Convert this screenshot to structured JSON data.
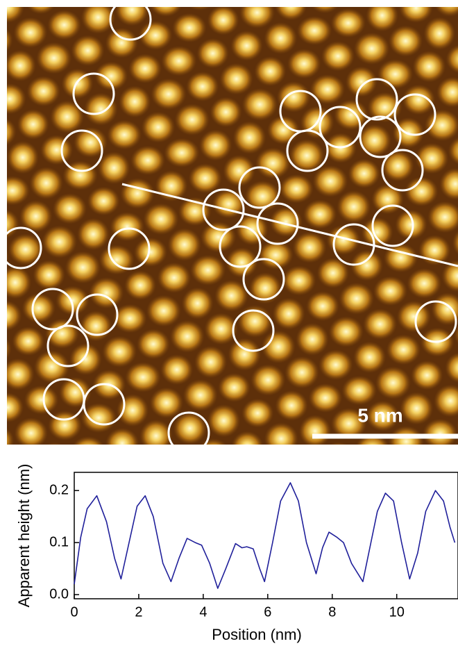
{
  "image": {
    "scale_bar_label": "5 nm"
  },
  "chart_data": {
    "type": "line",
    "xlabel": "Position (nm)",
    "ylabel": "Apparent height (nm)",
    "x": [
      0,
      0.2,
      0.4,
      0.7,
      1.0,
      1.25,
      1.45,
      1.7,
      1.95,
      2.2,
      2.45,
      2.75,
      3.0,
      3.25,
      3.5,
      3.75,
      3.95,
      4.2,
      4.45,
      4.7,
      5.0,
      5.2,
      5.35,
      5.55,
      5.75,
      5.9,
      6.15,
      6.4,
      6.7,
      6.95,
      7.2,
      7.5,
      7.7,
      7.9,
      8.15,
      8.35,
      8.6,
      8.95,
      9.2,
      9.4,
      9.65,
      9.9,
      10.15,
      10.4,
      10.65,
      10.9,
      11.2,
      11.45,
      11.65,
      11.8
    ],
    "series": [
      {
        "color": "#1f1f9a",
        "values": [
          0.02,
          0.11,
          0.165,
          0.19,
          0.14,
          0.07,
          0.03,
          0.1,
          0.17,
          0.19,
          0.15,
          0.06,
          0.025,
          0.07,
          0.108,
          0.1,
          0.095,
          0.06,
          0.012,
          0.05,
          0.098,
          0.09,
          0.092,
          0.088,
          0.05,
          0.025,
          0.1,
          0.18,
          0.215,
          0.18,
          0.1,
          0.04,
          0.09,
          0.12,
          0.11,
          0.1,
          0.06,
          0.025,
          0.1,
          0.16,
          0.195,
          0.18,
          0.1,
          0.03,
          0.08,
          0.16,
          0.2,
          0.18,
          0.13,
          0.1
        ]
      }
    ],
    "xlim": [
      0,
      11.9
    ],
    "ylim": [
      -0.008,
      0.235
    ],
    "xticks": [
      0,
      2,
      4,
      6,
      8,
      10
    ],
    "yticks": [
      {
        "value": 0,
        "label": "0.0"
      },
      0.1,
      0.2
    ]
  }
}
